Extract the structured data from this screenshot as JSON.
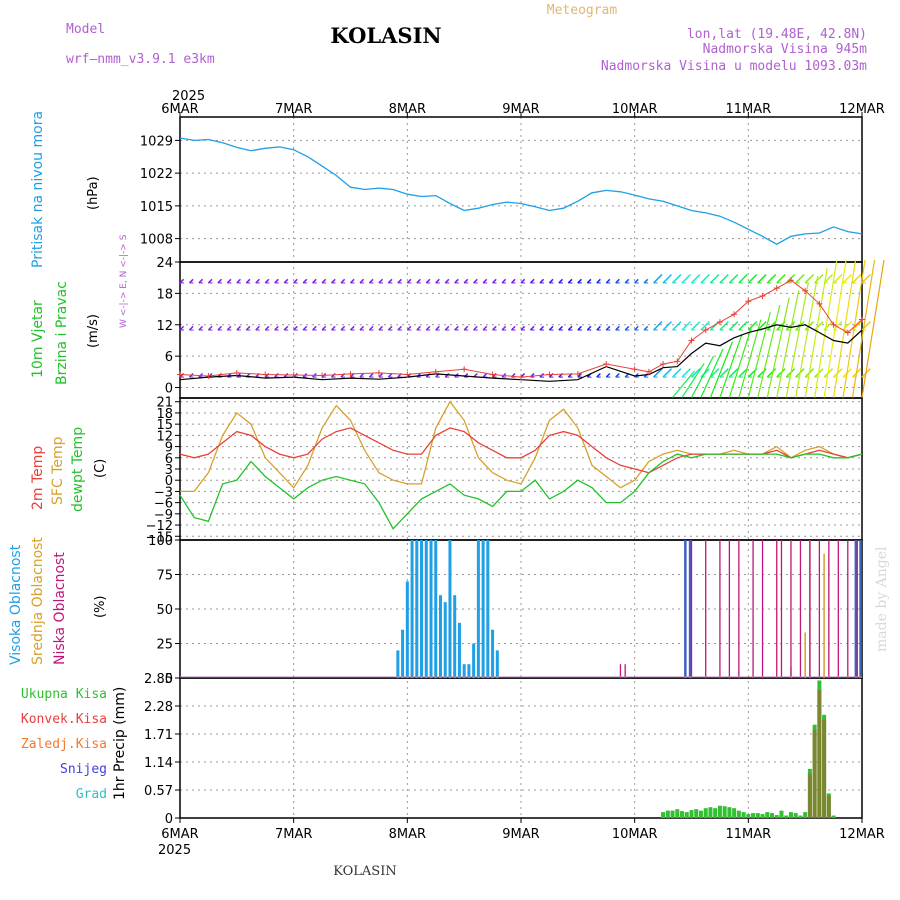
{
  "header": {
    "model_label": "Model",
    "model_name": "wrf—nmm_v3.9.1  e3km",
    "location": "KOLASIN",
    "chart_type": "Meteogram",
    "coords": "lon,lat (19.48E, 42.8N)",
    "elevation": "Nadmorska Visina 945m",
    "model_elevation": "Nadmorska Visina u modelu 1093.03m",
    "footer_location": "KOLASIN",
    "credit": "made by Angel"
  },
  "colors": {
    "pressure": "#1e9fe6",
    "wind_label": "#22c22a",
    "wind_purple": "#7a1fe0",
    "temp_2m": "#e8413a",
    "temp_sfc": "#d9a02a",
    "dewpoint": "#22c22a",
    "cloud_high": "#1e9fe6",
    "cloud_mid": "#d9a02a",
    "cloud_low": "#c0157a",
    "precip_total": "#30c030",
    "precip_conv": "#e84040",
    "precip_frz": "#f07a30",
    "precip_snow": "#4040e0",
    "precip_hail": "#30c0c0"
  },
  "chart_data": {
    "x_axis": {
      "year": "2025",
      "ticks": [
        "6MAR",
        "7MAR",
        "8MAR",
        "9MAR",
        "10MAR",
        "11MAR",
        "12MAR"
      ],
      "range_hours": [
        0,
        144
      ]
    },
    "panels": [
      {
        "id": "pressure",
        "type": "line",
        "ylabel_rot": "Pritisak na nivou mora",
        "unit": "(hPa)",
        "ylim": [
          1003,
          1034
        ],
        "yticks": [
          "1029",
          "1022",
          "1015",
          "1008"
        ],
        "ytick_values": [
          1029,
          1022,
          1015,
          1008
        ],
        "x": [
          0,
          3,
          6,
          9,
          12,
          15,
          18,
          21,
          24,
          27,
          30,
          33,
          36,
          39,
          42,
          45,
          48,
          51,
          54,
          57,
          60,
          63,
          66,
          69,
          72,
          75,
          78,
          81,
          84,
          87,
          90,
          93,
          96,
          99,
          102,
          105,
          108,
          111,
          114,
          117,
          120,
          123,
          126,
          129,
          132,
          135,
          138,
          141,
          144
        ],
        "values": [
          1029.5,
          1029.0,
          1029.2,
          1028.5,
          1027.5,
          1026.8,
          1027.3,
          1027.6,
          1027.0,
          1025.5,
          1023.5,
          1021.5,
          1019.0,
          1018.5,
          1018.8,
          1018.5,
          1017.5,
          1017.0,
          1017.2,
          1015.5,
          1014.0,
          1014.5,
          1015.3,
          1015.8,
          1015.5,
          1014.8,
          1014.0,
          1014.5,
          1016.0,
          1017.8,
          1018.3,
          1018.0,
          1017.3,
          1016.5,
          1016.0,
          1015.0,
          1014.0,
          1013.5,
          1012.8,
          1011.5,
          1010.0,
          1008.5,
          1006.8,
          1008.5,
          1009.0,
          1009.2,
          1010.5,
          1009.5,
          1009.0
        ]
      },
      {
        "id": "wind",
        "type": "line+barbs",
        "ylabel_rot_1": "10m Vjetar",
        "ylabel_rot_2": "Brzina i Pravac",
        "unit": "(m/s)",
        "direction_hint": "W <-|-> E, N <-|-> S",
        "ylim": [
          -2,
          24
        ],
        "yticks": [
          "24",
          "18",
          "12",
          "6",
          "0"
        ],
        "ytick_values": [
          24,
          18,
          12,
          6,
          0
        ],
        "x": [
          0,
          6,
          12,
          18,
          24,
          30,
          36,
          42,
          48,
          54,
          60,
          66,
          72,
          78,
          84,
          90,
          96,
          99,
          102,
          105,
          108,
          111,
          114,
          117,
          120,
          123,
          126,
          129,
          132,
          135,
          138,
          141,
          144
        ],
        "speed": [
          1.5,
          2.0,
          2.3,
          1.8,
          2.0,
          1.5,
          1.8,
          1.6,
          2.0,
          2.6,
          2.2,
          1.8,
          1.5,
          1.2,
          1.5,
          4.0,
          2.2,
          2.5,
          3.8,
          4.0,
          6.5,
          8.5,
          8.0,
          9.5,
          10.5,
          11.2,
          12.0,
          11.5,
          12.0,
          10.5,
          9.0,
          8.5,
          11.0
        ],
        "gust": [
          2.5,
          2.2,
          2.8,
          2.5,
          2.4,
          2.3,
          2.6,
          2.8,
          2.5,
          3.0,
          3.5,
          2.5,
          2.0,
          2.5,
          2.6,
          4.5,
          3.5,
          3.0,
          4.5,
          5.0,
          9.0,
          11.0,
          12.5,
          14.0,
          16.5,
          17.5,
          19.0,
          20.5,
          18.5,
          16.0,
          12.0,
          10.5,
          13.0
        ],
        "barb_rows": [
          2,
          11,
          20
        ]
      },
      {
        "id": "temperature",
        "type": "line",
        "ylabel_rot_1": "2m Temp",
        "ylabel_rot_2": "SFC Temp",
        "ylabel_rot_3": "dewpt Temp",
        "unit": "(C)",
        "ylim": [
          -16,
          22
        ],
        "yticks": [
          "21",
          "18",
          "15",
          "12",
          "9",
          "6",
          "3",
          "0",
          "−3",
          "−6",
          "−9",
          "−12",
          "−15"
        ],
        "ytick_values": [
          21,
          18,
          15,
          12,
          9,
          6,
          3,
          0,
          -3,
          -6,
          -9,
          -12,
          -15
        ],
        "x": [
          0,
          3,
          6,
          9,
          12,
          15,
          18,
          21,
          24,
          27,
          30,
          33,
          36,
          39,
          42,
          45,
          48,
          51,
          54,
          57,
          60,
          63,
          66,
          69,
          72,
          75,
          78,
          81,
          84,
          87,
          90,
          93,
          96,
          99,
          102,
          105,
          108,
          111,
          114,
          117,
          120,
          123,
          126,
          129,
          132,
          135,
          138,
          141,
          144
        ],
        "t2m": [
          7,
          6,
          7,
          10,
          13,
          12,
          9,
          7,
          6,
          7,
          11,
          13,
          14,
          12,
          10,
          8,
          7,
          7,
          12,
          14,
          13,
          10,
          8,
          6,
          6,
          8,
          12,
          13,
          12,
          9,
          6,
          4,
          3,
          2,
          4,
          6,
          7,
          7,
          7,
          7,
          7,
          7,
          8,
          6,
          7,
          8,
          7,
          6,
          7
        ],
        "tsfc": [
          -3,
          -3,
          2,
          12,
          18,
          15,
          6,
          2,
          -2,
          4,
          14,
          20,
          16,
          8,
          2,
          0,
          -1,
          -1,
          14,
          21,
          16,
          6,
          2,
          0,
          -1,
          6,
          16,
          19,
          14,
          4,
          1,
          -2,
          0,
          5,
          7,
          8,
          7,
          7,
          7,
          8,
          7,
          7,
          9,
          6,
          8,
          9,
          7,
          6,
          7
        ],
        "tdew": [
          -4,
          -10,
          -11,
          -1,
          0,
          5,
          1,
          -2,
          -5,
          -2,
          0,
          1,
          0,
          -1,
          -6,
          -13,
          -9,
          -5,
          -3,
          -1,
          -4,
          -5,
          -7,
          -3,
          -3,
          0,
          -5,
          -3,
          0,
          -2,
          -6,
          -6,
          -3,
          2,
          5,
          7,
          6,
          7,
          7,
          7,
          7,
          7,
          7,
          6,
          7,
          7,
          6,
          6,
          7
        ]
      },
      {
        "id": "clouds",
        "type": "bar",
        "ylabel_rot_1": "Visoka Oblacnost",
        "ylabel_rot_2": "Srednja Oblacnost",
        "ylabel_rot_3": "Niska Oblacnost",
        "unit": "(%)",
        "ylim": [
          0,
          100
        ],
        "yticks": [
          "100",
          "75",
          "50",
          "25",
          "0"
        ],
        "ytick_values": [
          100,
          75,
          50,
          25,
          0
        ],
        "high": {
          "x": [
            46,
            47,
            48,
            49,
            50,
            51,
            52,
            53,
            54,
            55,
            56,
            57,
            58,
            59,
            60,
            61,
            62,
            63,
            64,
            65,
            66,
            67,
            68,
            69
          ],
          "v": [
            20,
            35,
            70,
            100,
            100,
            100,
            100,
            100,
            100,
            60,
            55,
            100,
            60,
            40,
            10,
            10,
            25,
            100,
            100,
            100,
            35,
            20,
            0,
            0
          ]
        },
        "high_late": {
          "x": [
            107,
            108,
            143,
            144
          ],
          "v": [
            100,
            100,
            100,
            100
          ]
        },
        "mid": {
          "x": [
            129,
            132,
            133,
            136
          ],
          "v": [
            8,
            33,
            100,
            90
          ]
        },
        "low": {
          "x": [
            93,
            94,
            108,
            111,
            114,
            116,
            118,
            121,
            123,
            126,
            127,
            129,
            131,
            133,
            135,
            137,
            139,
            141,
            143
          ],
          "v": [
            10,
            10,
            100,
            100,
            100,
            100,
            100,
            100,
            100,
            100,
            100,
            100,
            100,
            100,
            100,
            100,
            100,
            100,
            100
          ]
        }
      },
      {
        "id": "precip",
        "type": "bar",
        "ylabel_rot": "1hr Precip (mm)",
        "legend": [
          "Ukupna Kisa",
          "Konvek.Kisa",
          "Zaledj.Kisa",
          "Snijeg",
          "Grad"
        ],
        "ylim": [
          0,
          2.85
        ],
        "yticks": [
          "2.85",
          "2.28",
          "1.71",
          "1.14",
          "0.57",
          "0"
        ],
        "ytick_values": [
          2.85,
          2.28,
          1.71,
          1.14,
          0.57,
          0
        ],
        "x": [
          102,
          103,
          104,
          105,
          106,
          107,
          108,
          109,
          110,
          111,
          112,
          113,
          114,
          115,
          116,
          117,
          118,
          119,
          120,
          121,
          122,
          123,
          124,
          125,
          126,
          127,
          128,
          129,
          130,
          131,
          132,
          133,
          134,
          135,
          136,
          137,
          138
        ],
        "total": [
          0.12,
          0.15,
          0.15,
          0.18,
          0.14,
          0.12,
          0.16,
          0.18,
          0.15,
          0.2,
          0.22,
          0.2,
          0.25,
          0.24,
          0.22,
          0.2,
          0.15,
          0.12,
          0.08,
          0.1,
          0.1,
          0.08,
          0.12,
          0.1,
          0.06,
          0.15,
          0.05,
          0.12,
          0.1,
          0.05,
          0.12,
          1.0,
          1.9,
          2.8,
          2.1,
          0.5,
          0.05
        ],
        "convective": [
          0,
          0,
          0,
          0,
          0,
          0,
          0,
          0,
          0,
          0,
          0,
          0,
          0,
          0,
          0,
          0,
          0,
          0,
          0,
          0,
          0,
          0,
          0,
          0,
          0,
          0,
          0,
          0,
          0,
          0,
          0,
          0.9,
          1.8,
          2.6,
          2.0,
          0.45,
          0
        ]
      }
    ]
  }
}
